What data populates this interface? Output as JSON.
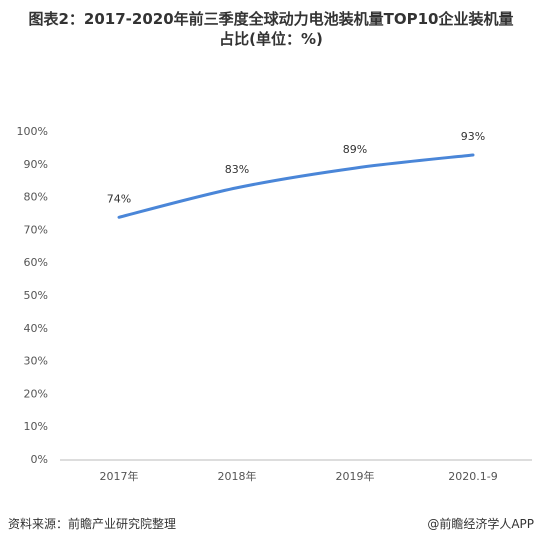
{
  "chart_data": {
    "type": "line",
    "title": [
      "图表2：2017-2020年前三季度全球动力电池装机量TOP10企业装机量",
      "占比(单位：%)"
    ],
    "categories": [
      "2017年",
      "2018年",
      "2019年",
      "2020.1-9"
    ],
    "values": [
      74,
      83,
      89,
      93
    ],
    "value_labels": [
      "74%",
      "83%",
      "89%",
      "93%"
    ],
    "color": "#4a86d8",
    "ylim": [
      0,
      100
    ],
    "yticks": [
      {
        "value": 0,
        "label": "0%"
      },
      {
        "value": 10,
        "label": "10%"
      },
      {
        "value": 20,
        "label": "20%"
      },
      {
        "value": 30,
        "label": "30%"
      },
      {
        "value": 40,
        "label": "40%"
      },
      {
        "value": 50,
        "label": "50%"
      },
      {
        "value": 60,
        "label": "60%"
      },
      {
        "value": 70,
        "label": "70%"
      },
      {
        "value": 80,
        "label": "80%"
      },
      {
        "value": 90,
        "label": "90%"
      },
      {
        "value": 100,
        "label": "100%"
      }
    ],
    "grid": false,
    "source": "资料来源：前瞻产业研究院整理",
    "footer": "@前瞻经济学人APP"
  }
}
